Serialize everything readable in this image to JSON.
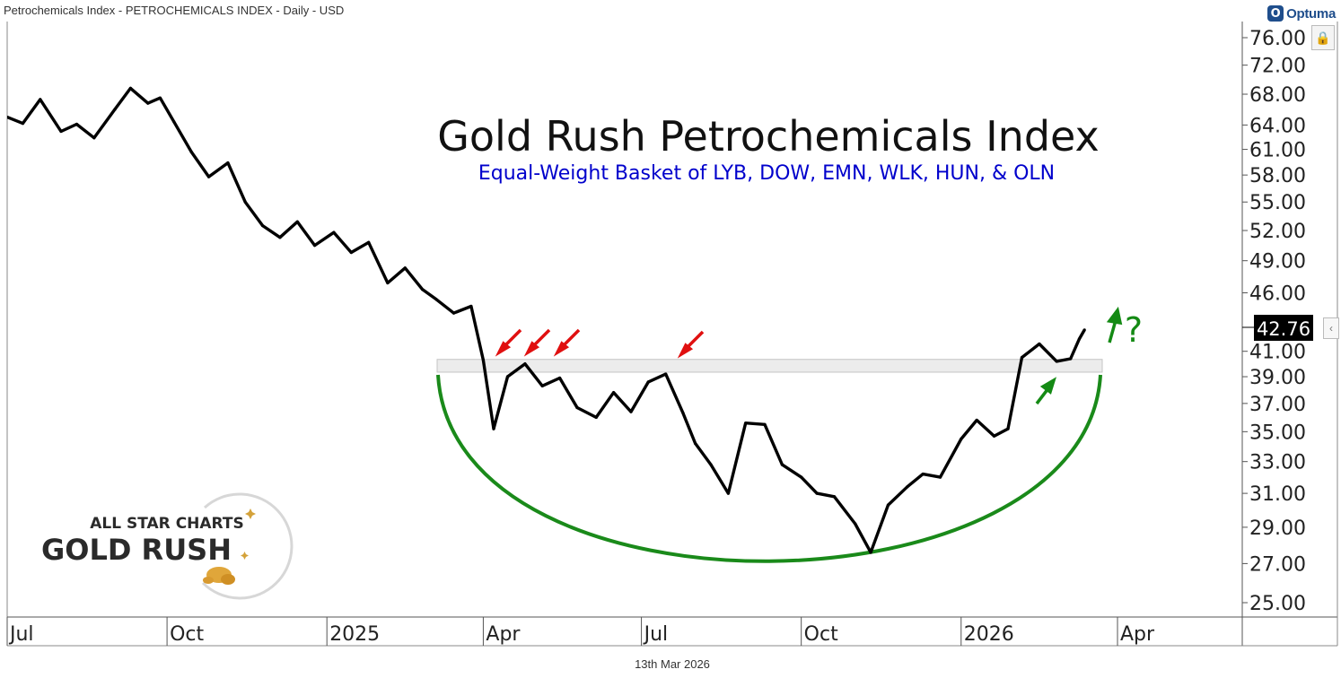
{
  "window": {
    "header": "Petrochemicals Index - PETROCHEMICALS INDEX - Daily - USD",
    "footer_date": "13th Mar 2026",
    "brand": "Optuma",
    "brand_badge": "O"
  },
  "watermark": {
    "line1": "ALL STAR CHARTS",
    "line2": "GOLD RUSH"
  },
  "icons": {
    "lock": "lock-icon",
    "expand": "chevron-left-icon"
  },
  "chart_data": {
    "type": "line",
    "title": "Gold Rush Petrochemicals Index",
    "subtitle": "Equal-Weight Basket of LYB, DOW, EMN, WLK, HUN, & OLN",
    "scale": "log",
    "ylim": [
      24.4,
      78
    ],
    "y_ticks": [
      "76.00",
      "72.00",
      "68.00",
      "64.00",
      "61.00",
      "58.00",
      "55.00",
      "52.00",
      "49.00",
      "46.00",
      "41.00",
      "39.00",
      "37.00",
      "35.00",
      "33.00",
      "31.00",
      "29.00",
      "27.00",
      "25.00"
    ],
    "x_ticks": [
      "Jul",
      "Oct",
      "2025",
      "Apr",
      "Jul",
      "Oct",
      "2026",
      "Apr"
    ],
    "last_value": "42.76",
    "annotation_text": "?",
    "resistance_zone": [
      39.35,
      40.35
    ],
    "series": [
      {
        "name": "",
        "color": "#000000",
        "x": [
          "2024-07-01",
          "2024-07-10",
          "2024-07-20",
          "2024-08-01",
          "2024-08-10",
          "2024-08-20",
          "2024-09-01",
          "2024-09-10",
          "2024-09-20",
          "2024-09-27",
          "2024-10-05",
          "2024-10-15",
          "2024-10-25",
          "2024-11-05",
          "2024-11-15",
          "2024-11-25",
          "2024-12-05",
          "2024-12-15",
          "2024-12-25",
          "2025-01-05",
          "2025-01-15",
          "2025-01-25",
          "2025-02-05",
          "2025-02-15",
          "2025-02-25",
          "2025-03-05",
          "2025-03-15",
          "2025-03-25",
          "2025-04-01",
          "2025-04-07",
          "2025-04-15",
          "2025-04-25",
          "2025-05-05",
          "2025-05-15",
          "2025-05-25",
          "2025-06-05",
          "2025-06-15",
          "2025-06-25",
          "2025-07-05",
          "2025-07-15",
          "2025-07-25",
          "2025-08-01",
          "2025-08-10",
          "2025-08-20",
          "2025-08-30",
          "2025-09-10",
          "2025-09-20",
          "2025-10-01",
          "2025-10-10",
          "2025-10-20",
          "2025-11-01",
          "2025-11-10",
          "2025-11-20",
          "2025-12-01",
          "2025-12-10",
          "2025-12-20",
          "2026-01-01",
          "2026-01-10",
          "2026-01-20",
          "2026-01-28",
          "2026-02-05",
          "2026-02-15",
          "2026-02-25",
          "2026-03-05",
          "2026-03-10",
          "2026-03-13"
        ],
        "values": [
          65.0,
          64.2,
          67.3,
          63.2,
          64.1,
          62.4,
          66.0,
          68.8,
          66.8,
          67.5,
          64.4,
          60.7,
          57.8,
          59.4,
          55.0,
          52.5,
          51.3,
          52.9,
          50.5,
          51.8,
          49.8,
          50.8,
          46.9,
          48.3,
          46.3,
          45.4,
          44.2,
          44.8,
          40.3,
          35.2,
          39.0,
          40.0,
          38.3,
          38.9,
          36.7,
          36.0,
          37.8,
          36.4,
          38.6,
          39.2,
          36.3,
          34.2,
          32.8,
          31.0,
          35.6,
          35.5,
          32.8,
          32.0,
          31.0,
          30.8,
          29.2,
          27.6,
          30.3,
          31.4,
          32.2,
          32.0,
          34.5,
          35.8,
          34.7,
          35.2,
          40.5,
          41.6,
          40.2,
          40.4,
          42.0,
          42.76
        ]
      }
    ]
  }
}
